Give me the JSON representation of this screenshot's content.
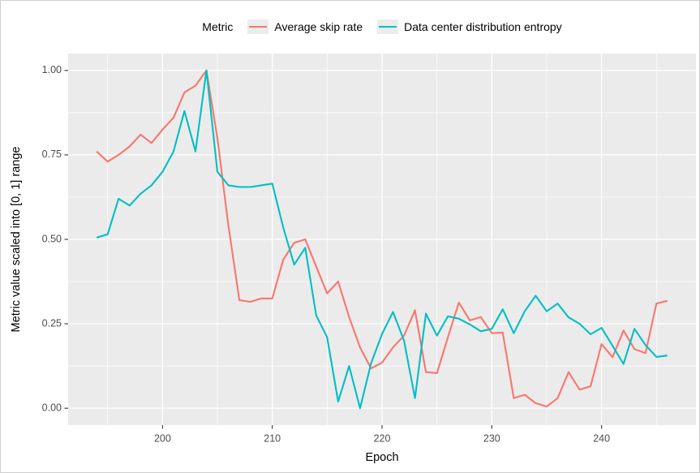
{
  "legend": {
    "title": "Metric",
    "items": [
      {
        "label": "Average skip rate",
        "color": "#F8766D"
      },
      {
        "label": "Data center distribution entropy",
        "color": "#00BFC4"
      }
    ]
  },
  "chart_data": {
    "type": "line",
    "title": "",
    "xlabel": "Epoch",
    "ylabel": "Metric value scaled into [0, 1] range",
    "legend_position": "top",
    "grid": "on",
    "x_axis": {
      "range": [
        191.4,
        248.6
      ],
      "ticks": [
        {
          "value": 200,
          "label": "200"
        },
        {
          "value": 210,
          "label": "210"
        },
        {
          "value": 220,
          "label": "220"
        },
        {
          "value": 230,
          "label": "230"
        },
        {
          "value": 240,
          "label": "240"
        }
      ],
      "minor_ticks": [
        195,
        205,
        215,
        225,
        235,
        245
      ]
    },
    "y_axis": {
      "range": [
        -0.05,
        1.05
      ],
      "ticks": [
        {
          "value": 0.0,
          "label": "0.00"
        },
        {
          "value": 0.25,
          "label": "0.25"
        },
        {
          "value": 0.5,
          "label": "0.50"
        },
        {
          "value": 0.75,
          "label": "0.75"
        },
        {
          "value": 1.0,
          "label": "1.00"
        }
      ],
      "minor_ticks": [
        0.125,
        0.375,
        0.625,
        0.875
      ]
    },
    "x": [
      194,
      195,
      196,
      197,
      198,
      199,
      200,
      201,
      202,
      203,
      204,
      205,
      206,
      207,
      208,
      209,
      210,
      211,
      212,
      213,
      214,
      215,
      216,
      217,
      218,
      219,
      220,
      221,
      222,
      223,
      224,
      225,
      226,
      227,
      228,
      229,
      230,
      231,
      232,
      233,
      234,
      235,
      236,
      237,
      238,
      239,
      240,
      241,
      242,
      243,
      244,
      245,
      246
    ],
    "series": [
      {
        "name": "Average skip rate",
        "color": "#F8766D",
        "values": [
          0.76,
          0.73,
          0.75,
          0.775,
          0.81,
          0.785,
          0.825,
          0.86,
          0.935,
          0.955,
          1.0,
          0.8,
          0.54,
          0.32,
          0.315,
          0.325,
          0.325,
          0.44,
          0.49,
          0.5,
          0.42,
          0.34,
          0.375,
          0.27,
          0.18,
          0.118,
          0.135,
          0.18,
          0.215,
          0.29,
          0.107,
          0.104,
          0.21,
          0.313,
          0.26,
          0.27,
          0.222,
          0.224,
          0.03,
          0.04,
          0.015,
          0.005,
          0.03,
          0.107,
          0.055,
          0.065,
          0.19,
          0.151,
          0.23,
          0.175,
          0.163,
          0.31,
          0.318
        ]
      },
      {
        "name": "Data center distribution entropy",
        "color": "#00BFC4",
        "values": [
          0.505,
          0.515,
          0.62,
          0.6,
          0.635,
          0.66,
          0.7,
          0.76,
          0.88,
          0.76,
          1.0,
          0.7,
          0.66,
          0.655,
          0.655,
          0.66,
          0.665,
          0.535,
          0.425,
          0.475,
          0.275,
          0.21,
          0.02,
          0.125,
          0.0,
          0.133,
          0.22,
          0.285,
          0.2,
          0.03,
          0.28,
          0.215,
          0.272,
          0.265,
          0.248,
          0.228,
          0.235,
          0.293,
          0.222,
          0.287,
          0.333,
          0.287,
          0.31,
          0.269,
          0.25,
          0.219,
          0.238,
          0.185,
          0.131,
          0.235,
          0.187,
          0.152,
          0.156
        ]
      }
    ],
    "style": {
      "panel_bg": "#EBEBEB",
      "grid_color": "#FFFFFF",
      "tick_text_color": "#4D4D4D",
      "tick_mark_color": "#333333",
      "axis_title_color": "#000000"
    }
  }
}
